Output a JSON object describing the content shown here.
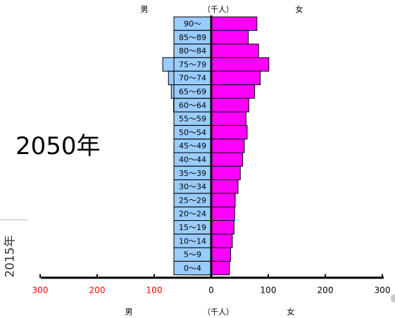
{
  "page": {
    "year_label": "2050年",
    "side_label": "2015年"
  },
  "chart_data": {
    "type": "bar",
    "orientation": "horizontal-pyramid",
    "unit_label": "（千人）",
    "male_label": "男",
    "female_label": "女",
    "categories": [
      "90～",
      "85～89",
      "80～84",
      "75～79",
      "70～74",
      "65～69",
      "60～64",
      "55～59",
      "50～54",
      "45～49",
      "40～44",
      "35～39",
      "30～34",
      "25～29",
      "20～24",
      "15～19",
      "10～14",
      "5～9",
      "0～4"
    ],
    "series": [
      {
        "name": "男",
        "color": "#99ccff",
        "values": [
          33,
          42,
          64,
          85,
          75,
          70,
          66,
          62,
          64,
          60,
          56,
          53,
          50,
          45,
          42,
          43,
          41,
          38,
          34
        ]
      },
      {
        "name": "女",
        "color": "#ff00ff",
        "values": [
          80,
          65,
          83,
          101,
          86,
          76,
          66,
          61,
          63,
          58,
          55,
          51,
          47,
          42,
          41,
          40,
          37,
          34,
          32
        ]
      }
    ],
    "x_ticks": [
      {
        "label": "300",
        "value": -300,
        "color": "#ff0000"
      },
      {
        "label": "200",
        "value": -200,
        "color": "#ff0000"
      },
      {
        "label": "100",
        "value": -100,
        "color": "#ff0000"
      },
      {
        "label": "0",
        "value": 0,
        "color": "#000000"
      },
      {
        "label": "100",
        "value": 100,
        "color": "#000000"
      },
      {
        "label": "200",
        "value": 200,
        "color": "#000000"
      },
      {
        "label": "300",
        "value": 300,
        "color": "#000000"
      }
    ],
    "xlim": [
      -300,
      300
    ],
    "label_box_color": "#99ccff"
  }
}
